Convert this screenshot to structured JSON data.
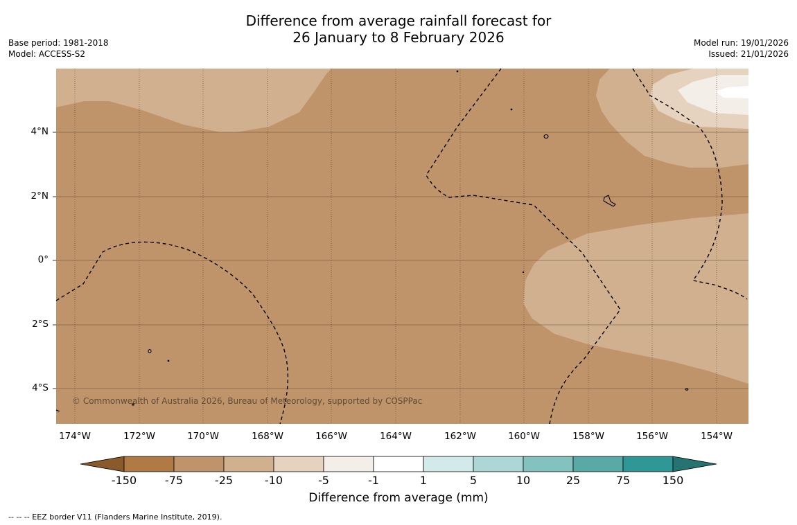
{
  "title": {
    "line1": "Difference from average rainfall forecast for",
    "line2": "26 January to 8 February 2026"
  },
  "meta_left": {
    "base_period": "Base period: 1981-2018",
    "model": "Model: ACCESS-S2"
  },
  "meta_right": {
    "model_run": "Model run: 19/01/2026",
    "issued": "Issued: 21/01/2026"
  },
  "map": {
    "region": "Central Pacific",
    "lon_range_deg": [
      -174.6,
      -153.1
    ],
    "lat_range_deg": [
      -5.0,
      5.6
    ],
    "lat_labels": [
      "4°N",
      "2°N",
      "0°",
      "2°S",
      "4°S"
    ],
    "lat_values": [
      4,
      2,
      0,
      -2,
      -4
    ],
    "lon_labels": [
      "174°W",
      "172°W",
      "170°W",
      "168°W",
      "166°W",
      "164°W",
      "162°W",
      "160°W",
      "158°W",
      "156°W",
      "154°W"
    ],
    "lon_values": [
      -174,
      -172,
      -170,
      -168,
      -166,
      -164,
      -162,
      -160,
      -158,
      -156,
      -154
    ],
    "copyright": "© Commonwealth of Australia 2026, Bureau of Meteorology, supported by COSPPac"
  },
  "colorbar": {
    "title": "Difference from average (mm)",
    "tick_labels": [
      "-150",
      "-75",
      "-25",
      "-10",
      "-5",
      "-1",
      "1",
      "5",
      "10",
      "25",
      "75",
      "150"
    ],
    "colors": {
      "extend_low": "#8a5a2b",
      "c0": "#b07a45",
      "c1": "#c0946a",
      "c2": "#d1b090",
      "c3": "#e5d3c0",
      "c4": "#f3eee8",
      "c5": "#ffffff",
      "c6": "#d2ebea",
      "c7": "#acd7d6",
      "c8": "#84c2c0",
      "c9": "#59a9a7",
      "c10": "#2f9896",
      "extend_high": "#267472"
    }
  },
  "footnote": "--  --  -- EEZ border V11 (Flanders Marine Institute, 2019)."
}
